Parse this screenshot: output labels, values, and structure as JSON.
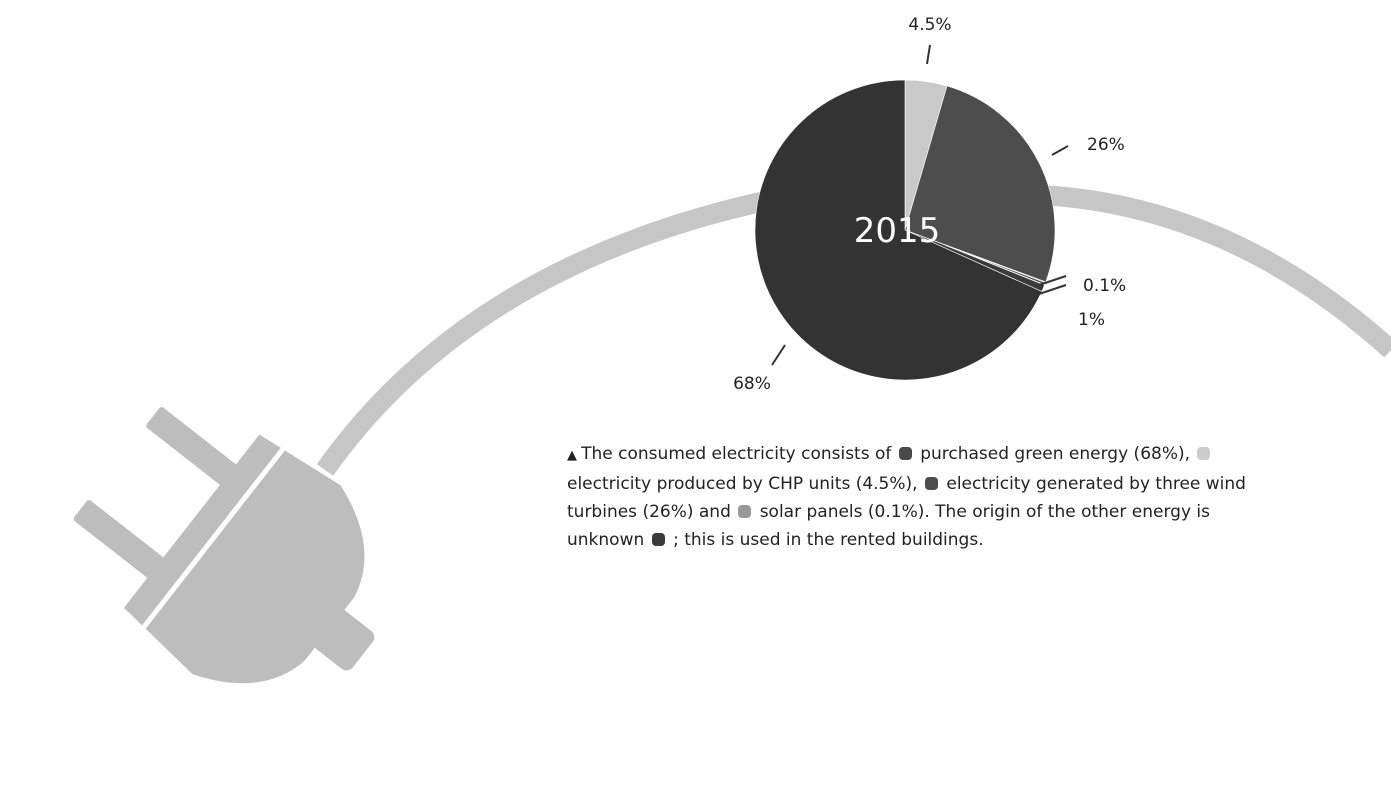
{
  "chart_data": {
    "type": "pie",
    "title": "2015",
    "slices": [
      {
        "value": 4.5,
        "label": "4.5%",
        "color": "#c9c9c9"
      },
      {
        "value": 26,
        "label": "26%",
        "color": "#4d4d4d"
      },
      {
        "value": 0.1,
        "label": "0.1%",
        "color": "#9a9a9a"
      },
      {
        "value": 1,
        "label": "1%",
        "color": "#3a3a3a"
      },
      {
        "value": 68,
        "label": "68%",
        "color": "#333333"
      }
    ]
  },
  "caption": {
    "marker": "▲",
    "parts": [
      {
        "text": "The consumed electricity consists of"
      },
      {
        "swatch": "#4a4a4a"
      },
      {
        "text": "purchased green energy (68%),"
      },
      {
        "swatch": "#cccccc"
      },
      {
        "text": "electricity produced by CHP units (4.5%),"
      },
      {
        "swatch": "#4d4d4d"
      },
      {
        "text": "electricity generated by three wind turbines (26%) and"
      },
      {
        "swatch": "#999999"
      },
      {
        "text": "solar panels (0.1%). The origin of the other energy is unknown"
      },
      {
        "swatch": "#3a3a3a"
      },
      {
        "text": "; this is used in the rented buildings."
      }
    ]
  },
  "colors": {
    "cable": "#c6c6c6",
    "plug": "#bdbdbd"
  }
}
